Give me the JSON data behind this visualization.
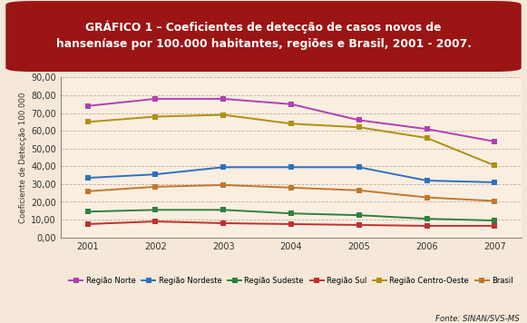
{
  "title_line1": "GRÁFICO 1 – Coeficientes de detecção de casos novos de",
  "title_line2": "hanseníase por 100.000 habitantes, regiões e Brasil, 2001 - 2007.",
  "ylabel": "Coeficiente de Detecção 100.000",
  "years": [
    2001,
    2002,
    2003,
    2004,
    2005,
    2006,
    2007
  ],
  "series_order": [
    "Região Norte",
    "Região Nordeste",
    "Região Sudeste",
    "Região Sul",
    "Região Centro-Oeste",
    "Brasil"
  ],
  "series": {
    "Região Norte": [
      74.0,
      78.0,
      78.0,
      75.0,
      66.0,
      61.0,
      54.0
    ],
    "Região Nordeste": [
      33.5,
      35.5,
      39.5,
      39.5,
      39.5,
      32.0,
      31.0
    ],
    "Região Sudeste": [
      14.5,
      15.5,
      15.5,
      13.5,
      12.5,
      10.5,
      9.5
    ],
    "Região Sul": [
      7.5,
      9.0,
      8.0,
      7.5,
      7.0,
      6.5,
      6.5
    ],
    "Região Centro-Oeste": [
      65.0,
      68.0,
      69.0,
      64.0,
      62.0,
      56.0,
      40.5
    ],
    "Brasil": [
      26.0,
      28.5,
      29.5,
      28.0,
      26.5,
      22.5,
      20.5
    ]
  },
  "colors": {
    "Região Norte": "#b040b0",
    "Região Nordeste": "#3070c0",
    "Região Sudeste": "#308040",
    "Região Sul": "#c03030",
    "Região Centro-Oeste": "#b09010",
    "Brasil": "#c07830"
  },
  "ylim": [
    0,
    90
  ],
  "yticks": [
    0,
    10,
    20,
    30,
    40,
    50,
    60,
    70,
    80,
    90
  ],
  "ytick_labels": [
    "0,00",
    "10,00",
    "20,00",
    "30,00",
    "40,00",
    "50,00",
    "60,00",
    "70,00",
    "80,00",
    "90,00"
  ],
  "plot_bg": "#faeee0",
  "outer_bg": "#f5e8d8",
  "title_bg": "#9b1515",
  "title_fg": "#ffffff",
  "footer": "Fonte: SINAN/SVS-MS",
  "border_color": "#8b1515"
}
